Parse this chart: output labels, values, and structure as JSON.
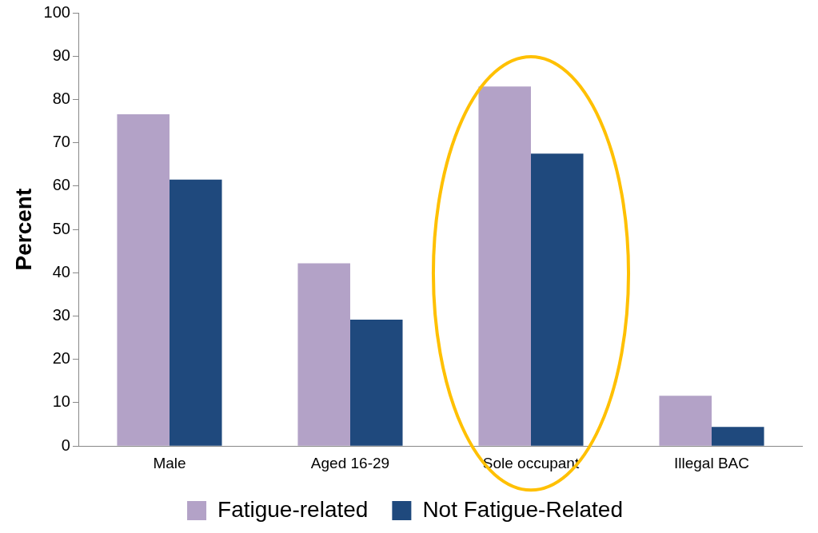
{
  "chart_data": {
    "type": "bar",
    "ylabel": "Percent",
    "categories": [
      "Male",
      "Aged 16-29",
      "Sole occupant",
      "Illegal BAC"
    ],
    "series": [
      {
        "name": "Fatigue-related",
        "color": "#b3a2c7",
        "values": [
          76.6,
          42.2,
          83.0,
          11.6
        ]
      },
      {
        "name": "Not Fatigue-Related",
        "color": "#1f497d",
        "values": [
          61.5,
          29.2,
          67.5,
          4.4
        ]
      }
    ],
    "ylim": [
      0,
      100
    ],
    "yticks": [
      0,
      10,
      20,
      30,
      40,
      50,
      60,
      70,
      80,
      90,
      100
    ],
    "grid": false,
    "legend": "bottom"
  }
}
